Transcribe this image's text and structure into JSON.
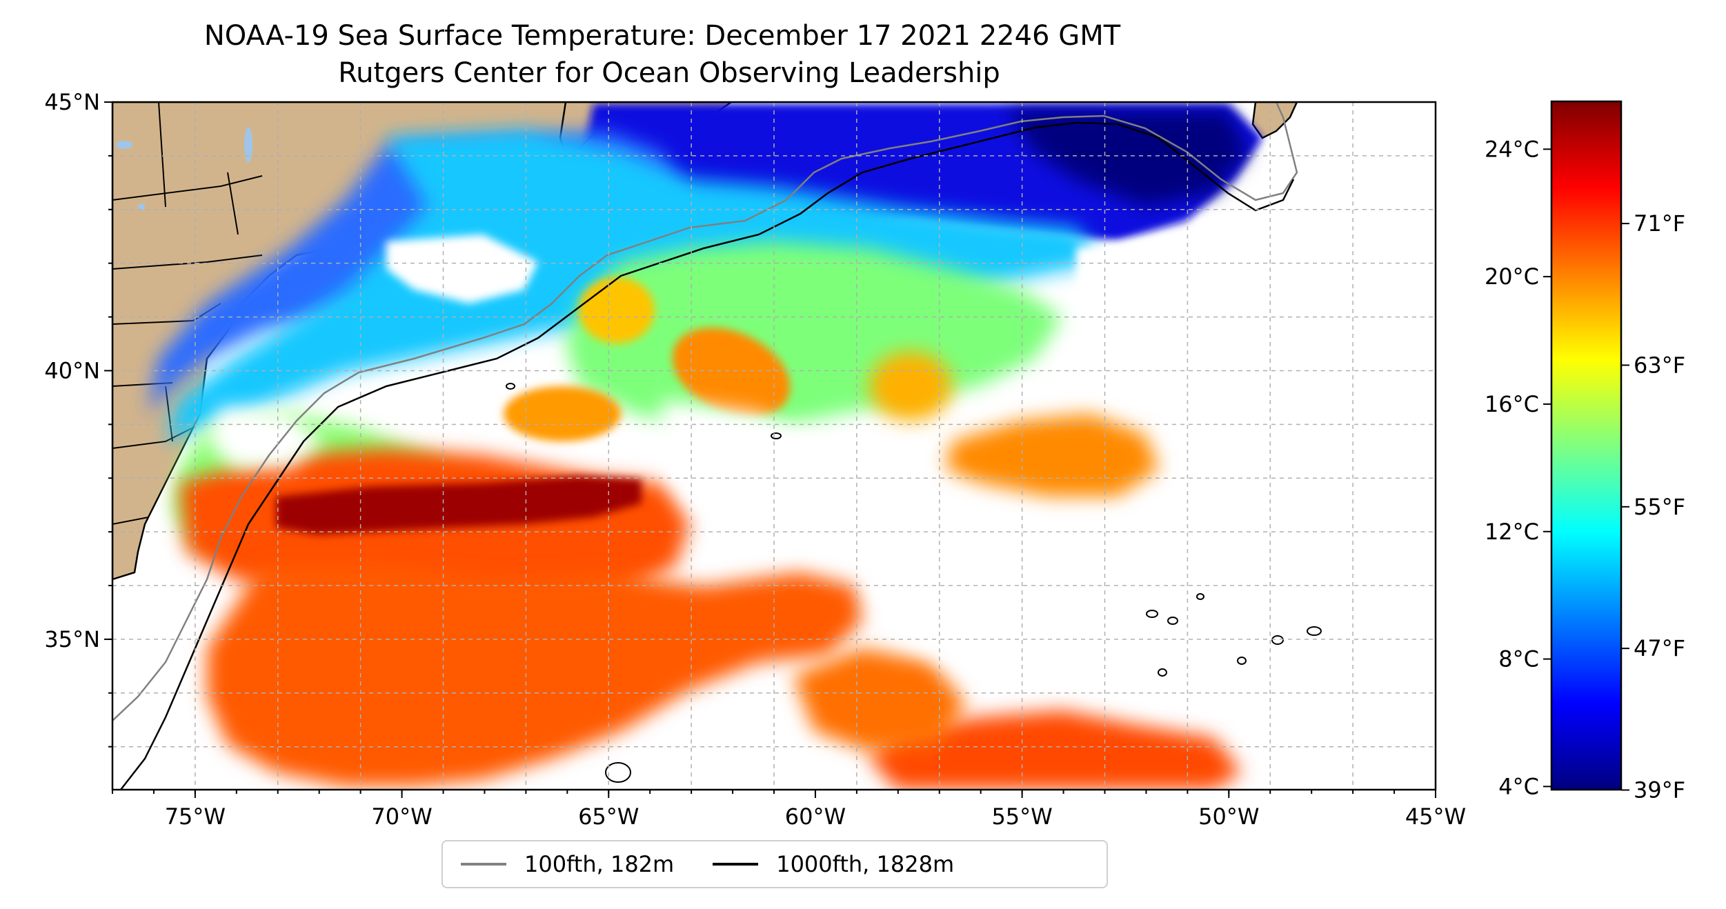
{
  "title": "NOAA-19 Sea Surface Temperature: December 17 2021 2246 GMT",
  "subtitle": "Rutgers Center for Ocean Observing Leadership",
  "map": {
    "lon_range": [
      -77,
      -45
    ],
    "lat_range": [
      32.2,
      45
    ],
    "lon_ticks": [
      {
        "value": -75,
        "label": "75°W"
      },
      {
        "value": -70,
        "label": "70°W"
      },
      {
        "value": -65,
        "label": "65°W"
      },
      {
        "value": -60,
        "label": "60°W"
      },
      {
        "value": -55,
        "label": "55°W"
      },
      {
        "value": -50,
        "label": "50°W"
      },
      {
        "value": -45,
        "label": "45°W"
      }
    ],
    "lat_ticks": [
      {
        "value": 45,
        "label": "45°N"
      },
      {
        "value": 40,
        "label": "40°N"
      },
      {
        "value": 35,
        "label": "35°N"
      }
    ],
    "gridlines": true,
    "colors": {
      "land": "#d2b48c",
      "background": "#ffffff",
      "grid": "#b0b0b0"
    }
  },
  "colorbar": {
    "colormap": "jet",
    "celsius_range": [
      3.9,
      25.5
    ],
    "celsius_ticks": [
      {
        "value": 4,
        "label": "4°C"
      },
      {
        "value": 8,
        "label": "8°C"
      },
      {
        "value": 12,
        "label": "12°C"
      },
      {
        "value": 16,
        "label": "16°C"
      },
      {
        "value": 20,
        "label": "20°C"
      },
      {
        "value": 24,
        "label": "24°C"
      }
    ],
    "fahrenheit_ticks": [
      {
        "value": 39,
        "label": "39°F"
      },
      {
        "value": 47,
        "label": "47°F"
      },
      {
        "value": 55,
        "label": "55°F"
      },
      {
        "value": 63,
        "label": "63°F"
      },
      {
        "value": 71,
        "label": "71°F"
      }
    ]
  },
  "legend": {
    "items": [
      {
        "label": "100fth, 182m",
        "color": "#808080"
      },
      {
        "label": "1000fth, 1828m",
        "color": "#000000"
      }
    ]
  }
}
